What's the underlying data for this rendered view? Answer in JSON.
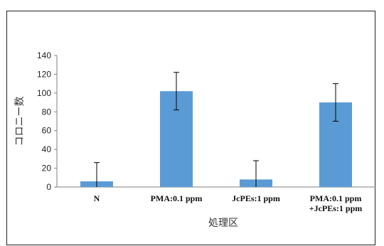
{
  "chart_data": {
    "type": "bar",
    "title": "",
    "xlabel": "処理区",
    "ylabel": "コロニー数",
    "ylim": [
      0,
      140
    ],
    "yticks": [
      0,
      20,
      40,
      60,
      80,
      100,
      120,
      140
    ],
    "grid": false,
    "legend": "none",
    "categories": [
      [
        "N"
      ],
      [
        "PMA:0.1 ppm"
      ],
      [
        "JcPEs:1 ppm"
      ],
      [
        "PMA:0.1 ppm",
        "+JcPEs:1 ppm"
      ]
    ],
    "values": [
      6,
      102,
      8,
      90
    ],
    "error": [
      20,
      20,
      20,
      20
    ],
    "colors": {
      "bar": "#5b9bd5",
      "axis": "#7f7f7f",
      "errorbar": "#000000"
    }
  }
}
